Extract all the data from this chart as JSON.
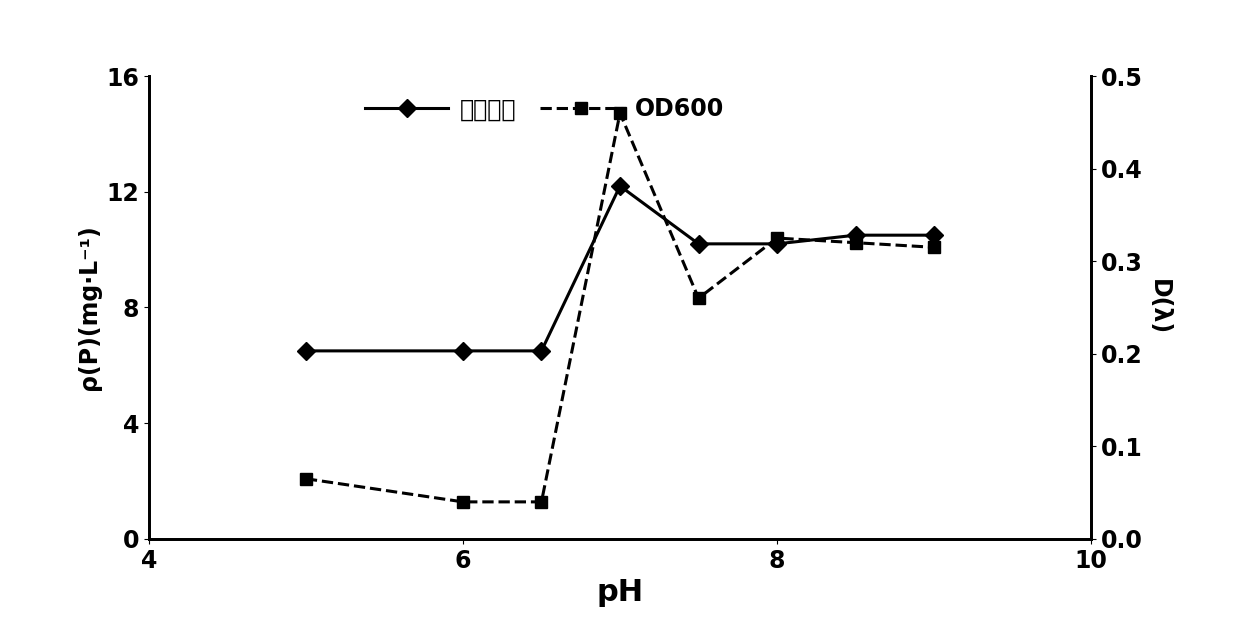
{
  "ph_values": [
    5,
    6,
    6.5,
    7,
    7.5,
    8,
    8.5,
    9
  ],
  "phosphorus_removal": [
    6.5,
    6.5,
    6.5,
    12.2,
    10.2,
    10.2,
    10.5,
    10.5
  ],
  "od600_values": [
    0.065,
    0.04,
    0.04,
    0.46,
    0.26,
    0.325,
    0.32,
    0.315
  ],
  "xlabel": "pH",
  "ylabel_left": "ρ(P)(mg·L⁻¹)",
  "ylabel_right": "D(λ)",
  "legend_solid": "磷去除量",
  "legend_dashed": "OD600",
  "xlim": [
    4,
    10
  ],
  "ylim_left": [
    0,
    16
  ],
  "ylim_right": [
    0,
    0.5
  ],
  "xticks": [
    4,
    6,
    8,
    10
  ],
  "yticks_left": [
    0,
    4,
    8,
    12,
    16
  ],
  "yticks_right": [
    0,
    0.1,
    0.2,
    0.3,
    0.4,
    0.5
  ],
  "line_color": "#000000",
  "marker_solid": "D",
  "marker_dashed": "s",
  "marker_size": 9,
  "linewidth": 2.2,
  "xlabel_fontsize": 22,
  "ylabel_fontsize": 17,
  "tick_fontsize": 17,
  "legend_fontsize": 17,
  "background_color": "#ffffff"
}
